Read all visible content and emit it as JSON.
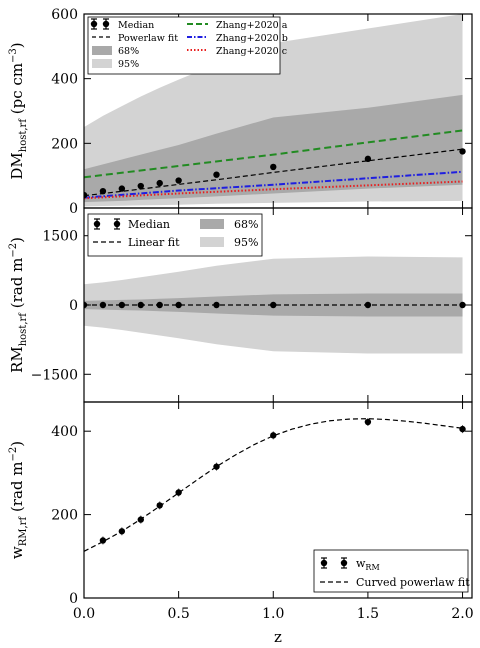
{
  "x_axis": {
    "label": "z",
    "ticks": [
      0.0,
      0.5,
      1.0,
      1.5,
      2.0
    ],
    "tick_labels": [
      "0.0",
      "0.5",
      "1.0",
      "1.5",
      "2.0"
    ],
    "range": [
      0.0,
      2.05
    ]
  },
  "colors": {
    "band95": "#d3d3d3",
    "band68": "#a9a9a9",
    "zhang_a": "#228b22",
    "zhang_b": "#1f1fe0",
    "zhang_c": "#e81e1e",
    "black": "#000000"
  },
  "chart_data": [
    {
      "type": "line",
      "id": "dm",
      "ylabel": "DM_host,rf (pc cm^-3)",
      "ylabel_main": "DM",
      "ylabel_sub": "host,rf",
      "ylabel_unit": " (pc cm",
      "ylabel_sup": "−3",
      "ylabel_close": ")",
      "ylim": [
        0,
        600
      ],
      "yticks": [
        0,
        200,
        400,
        600
      ],
      "ytick_labels": [
        "0",
        "200",
        "400",
        "600"
      ],
      "x": [
        0.0,
        0.1,
        0.2,
        0.3,
        0.4,
        0.5,
        0.7,
        1.0,
        1.5,
        2.0
      ],
      "band95": {
        "x": [
          0.0,
          0.1,
          0.2,
          0.3,
          0.4,
          0.5,
          0.7,
          1.0,
          1.5,
          2.0
        ],
        "lower": [
          5,
          6,
          7,
          8,
          9,
          10,
          13,
          16,
          20,
          22
        ],
        "upper": [
          250,
          285,
          315,
          345,
          372,
          397,
          445,
          510,
          555,
          600
        ]
      },
      "band68": {
        "x": [
          0.0,
          0.1,
          0.2,
          0.3,
          0.4,
          0.5,
          0.7,
          1.0,
          1.5,
          2.0
        ],
        "lower": [
          18,
          20,
          22,
          25,
          28,
          30,
          36,
          45,
          60,
          72
        ],
        "upper": [
          120,
          135,
          150,
          165,
          180,
          195,
          230,
          280,
          310,
          350
        ]
      },
      "median": {
        "x": [
          0.0,
          0.1,
          0.2,
          0.3,
          0.4,
          0.5,
          0.7,
          1.0,
          1.5,
          2.0
        ],
        "y": [
          40,
          52,
          60,
          68,
          77,
          85,
          103,
          127,
          152,
          175
        ]
      },
      "fit": {
        "x": [
          0.0,
          0.25,
          0.5,
          0.75,
          1.0,
          1.25,
          1.5,
          1.75,
          2.0
        ],
        "y": [
          38,
          55,
          73,
          91,
          110,
          128,
          146,
          164,
          182
        ]
      },
      "zhang_a": {
        "x": [
          0.0,
          0.5,
          1.0,
          1.5,
          2.0
        ],
        "y": [
          95,
          130,
          165,
          203,
          240
        ]
      },
      "zhang_b": {
        "x": [
          0.0,
          0.5,
          1.0,
          1.5,
          2.0
        ],
        "y": [
          32,
          54,
          72,
          92,
          112
        ]
      },
      "zhang_c": {
        "x": [
          0.0,
          0.5,
          1.0,
          1.5,
          2.0
        ],
        "y": [
          30,
          45,
          58,
          70,
          82
        ]
      },
      "legend": {
        "median": "Median",
        "fit": "Powerlaw fit",
        "band68": "68%",
        "band95": "95%",
        "zhang_a": "Zhang+2020 a",
        "zhang_b": "Zhang+2020 b",
        "zhang_c": "Zhang+2020 c",
        "placement": "top-left"
      }
    },
    {
      "type": "line",
      "id": "rm",
      "ylabel": "RM_host,rf (rad m^-2)",
      "ylabel_main": "RM",
      "ylabel_sub": "host,rf",
      "ylabel_unit": " (rad m",
      "ylabel_sup": "−2",
      "ylabel_close": ")",
      "ylim": [
        -2100,
        2100
      ],
      "yticks": [
        -1500,
        0,
        1500
      ],
      "ytick_labels": [
        "−1500",
        "0",
        "1500"
      ],
      "band95": {
        "x": [
          0.0,
          0.1,
          0.2,
          0.3,
          0.4,
          0.5,
          0.7,
          1.0,
          1.5,
          2.0
        ],
        "lower": [
          -450,
          -490,
          -540,
          -600,
          -660,
          -720,
          -850,
          -1000,
          -1050,
          -1050
        ],
        "upper": [
          450,
          490,
          540,
          600,
          660,
          720,
          850,
          1000,
          1050,
          1030
        ]
      },
      "band68": {
        "x": [
          0.0,
          0.1,
          0.2,
          0.3,
          0.4,
          0.5,
          0.7,
          1.0,
          1.5,
          2.0
        ],
        "lower": [
          -90,
          -100,
          -110,
          -120,
          -135,
          -150,
          -185,
          -230,
          -250,
          -250
        ],
        "upper": [
          90,
          100,
          110,
          120,
          135,
          150,
          185,
          230,
          250,
          250
        ]
      },
      "median": {
        "x": [
          0.0,
          0.1,
          0.2,
          0.3,
          0.4,
          0.5,
          0.7,
          1.0,
          1.5,
          2.0
        ],
        "y": [
          0,
          0,
          0,
          0,
          0,
          0,
          0,
          0,
          0,
          0
        ]
      },
      "fit": {
        "x": [
          0.0,
          2.0
        ],
        "y": [
          0,
          0
        ]
      },
      "legend": {
        "median": "Median",
        "fit": "Linear fit",
        "band68": "68%",
        "band95": "95%",
        "placement": "top-left"
      }
    },
    {
      "type": "line",
      "id": "w",
      "ylabel": "w_RM,rf (rad m^-2)",
      "ylabel_main": "w",
      "ylabel_sub": "RM,rf",
      "ylabel_unit": " (rad m",
      "ylabel_sup": "−2",
      "ylabel_close": ")",
      "ylim": [
        0,
        470
      ],
      "yticks": [
        0,
        200,
        400
      ],
      "ytick_labels": [
        "0",
        "200",
        "400"
      ],
      "points": {
        "x": [
          0.1,
          0.2,
          0.3,
          0.4,
          0.5,
          0.7,
          1.0,
          1.5,
          2.0
        ],
        "y": [
          138,
          160,
          188,
          222,
          253,
          315,
          390,
          422,
          405
        ]
      },
      "fit": {
        "x": [
          0.0,
          0.1,
          0.2,
          0.3,
          0.4,
          0.5,
          0.6,
          0.7,
          0.8,
          0.9,
          1.0,
          1.1,
          1.2,
          1.3,
          1.4,
          1.5,
          1.6,
          1.7,
          1.8,
          1.9,
          2.0
        ],
        "y": [
          112,
          135,
          160,
          189,
          220,
          252,
          284,
          315,
          343,
          368,
          389,
          405,
          417,
          425,
          429,
          430,
          428,
          424,
          419,
          413,
          407
        ]
      },
      "legend": {
        "points": "w",
        "points_sub": "RM",
        "fit": "Curved powerlaw fit",
        "placement": "bottom-right"
      }
    }
  ]
}
